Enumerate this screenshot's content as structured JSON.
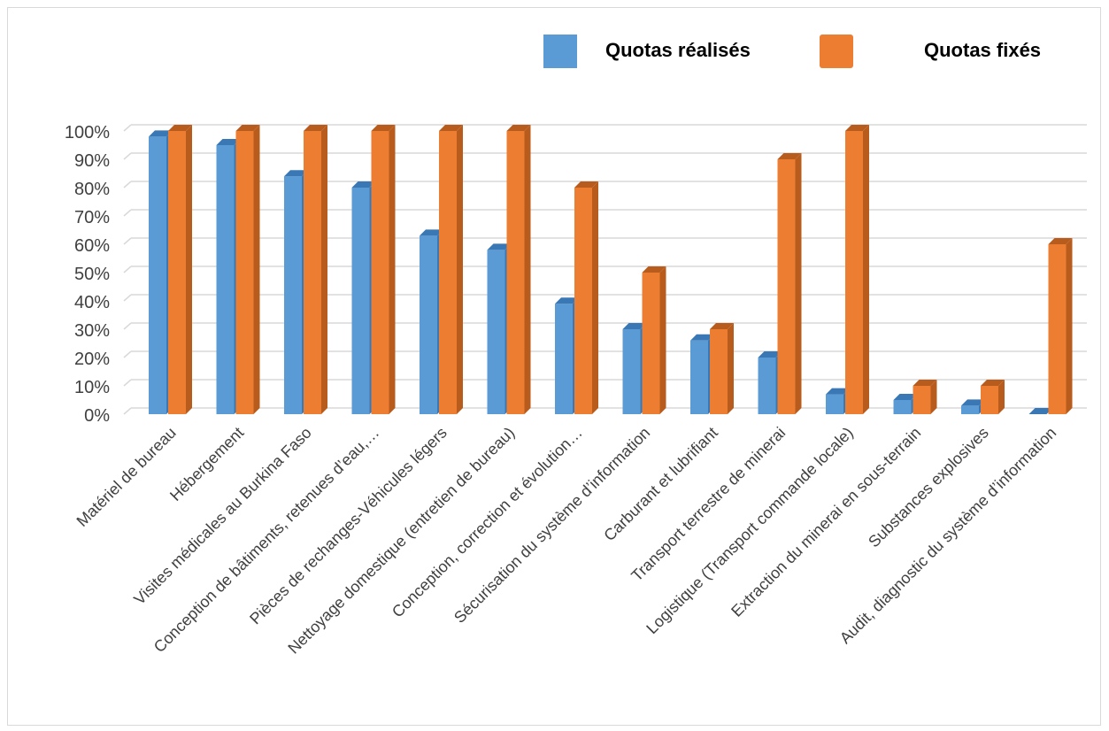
{
  "legend": {
    "realised_label": "Quotas réalisés",
    "fixed_label": "Quotas fixés"
  },
  "colors": {
    "realised": "#5b9bd5",
    "realised_dark": "#3a78b5",
    "fixed": "#ed7d31",
    "fixed_dark": "#b85c1d",
    "grid": "#d9d9d9"
  },
  "chart_data": {
    "type": "bar",
    "xlabel": "",
    "ylabel": "",
    "ylim": [
      0,
      100
    ],
    "yticks": [
      "0%",
      "10%",
      "20%",
      "30%",
      "40%",
      "50%",
      "60%",
      "70%",
      "80%",
      "90%",
      "100%"
    ],
    "grid": true,
    "legend_position": "top-right",
    "categories": [
      "Matériel de bureau",
      "Hébergement",
      "Visites médicales au Burkina Faso",
      "Conception de bâtiments, retenues d’eau,…",
      "Pièces de rechanges-Véhicules légers",
      "Nettoyage domestique (entretien de bureau)",
      "Conception, correction et évolution…",
      "Sécurisation du système d’information",
      "Carburant et lubrifiant",
      "Transport terrestre de minerai",
      "Logistique (Transport commande locale)",
      "Extraction du minerai en sous-terrain",
      "Substances explosives",
      "Audit, diagnostic du système d’information"
    ],
    "series": [
      {
        "name": "Quotas réalisés",
        "values": [
          98,
          95,
          84,
          80,
          63,
          58,
          39,
          30,
          26,
          20,
          7,
          5,
          3,
          0
        ]
      },
      {
        "name": "Quotas fixés",
        "values": [
          100,
          100,
          100,
          100,
          100,
          100,
          80,
          50,
          30,
          90,
          100,
          10,
          10,
          60
        ]
      }
    ]
  }
}
